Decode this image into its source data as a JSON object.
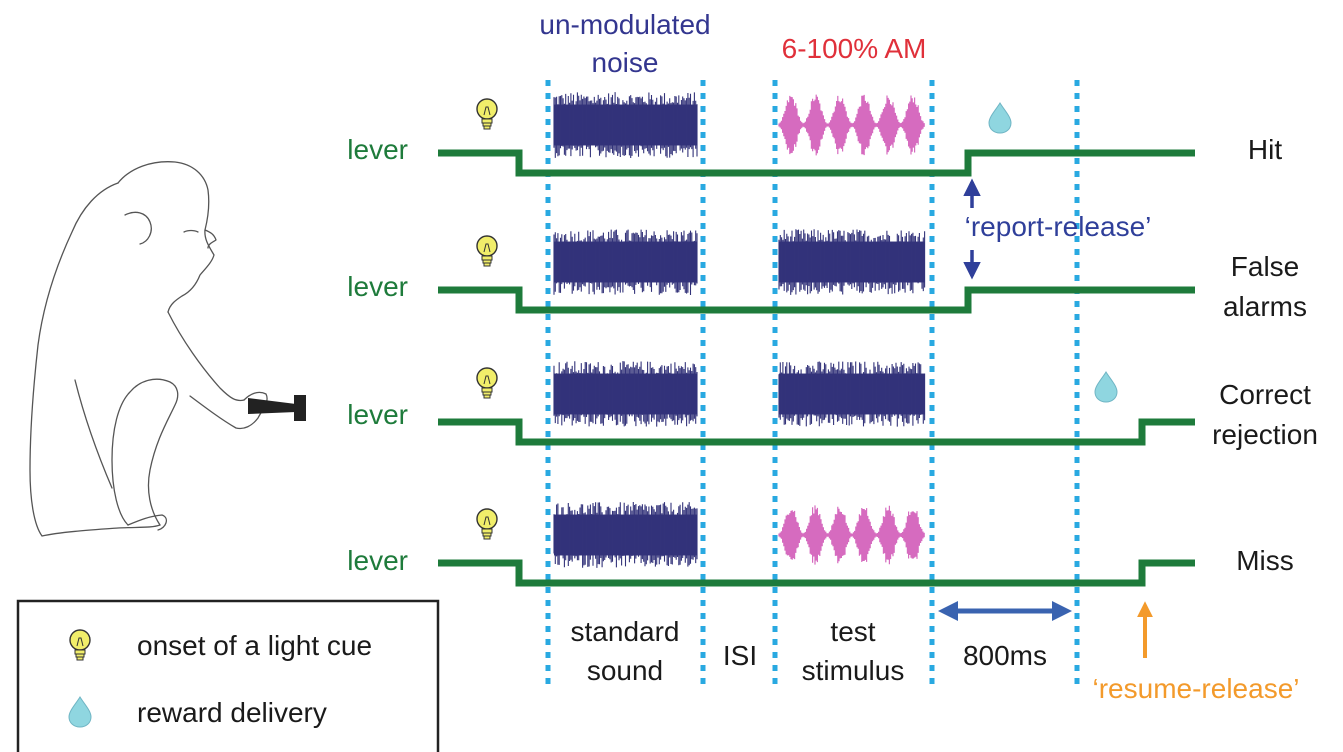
{
  "top_labels": {
    "noise_line1": "un-modulated",
    "noise_line2": "noise",
    "am": "6-100% AM"
  },
  "lever_label": "lever",
  "trials": [
    {
      "outcome_lines": [
        "Hit"
      ],
      "test": "am",
      "release": "early",
      "reward": true
    },
    {
      "outcome_lines": [
        "False",
        "alarms"
      ],
      "test": "noise",
      "release": "early",
      "reward": false
    },
    {
      "outcome_lines": [
        "Correct",
        "rejection"
      ],
      "test": "noise",
      "release": "late",
      "reward": true
    },
    {
      "outcome_lines": [
        "Miss"
      ],
      "test": "am",
      "release": "late",
      "reward": false
    }
  ],
  "annotations": {
    "report_release": "‘report-release’",
    "resume_release": "‘resume-release’",
    "duration": "800ms"
  },
  "bottom_labels": {
    "standard_line1": "standard",
    "standard_line2": "sound",
    "isi": "ISI",
    "test_line1": "test",
    "test_line2": "stimulus"
  },
  "legend": {
    "items": [
      {
        "icon": "light-bulb-icon",
        "label": "onset of a light cue"
      },
      {
        "icon": "water-drop-icon",
        "label": "reward delivery"
      }
    ]
  },
  "colors": {
    "lever": "#1e7b3b",
    "noise": "#33337a",
    "am": "#d66bbf",
    "am_label": "#e0303a",
    "noise_label": "#33368f",
    "guide": "#29a9e1",
    "report": "#2f3f9a",
    "duration_arrow": "#3a63b0",
    "resume": "#f39a2b",
    "bulb": "#f1ee6a",
    "drop": "#8fd6e0"
  }
}
